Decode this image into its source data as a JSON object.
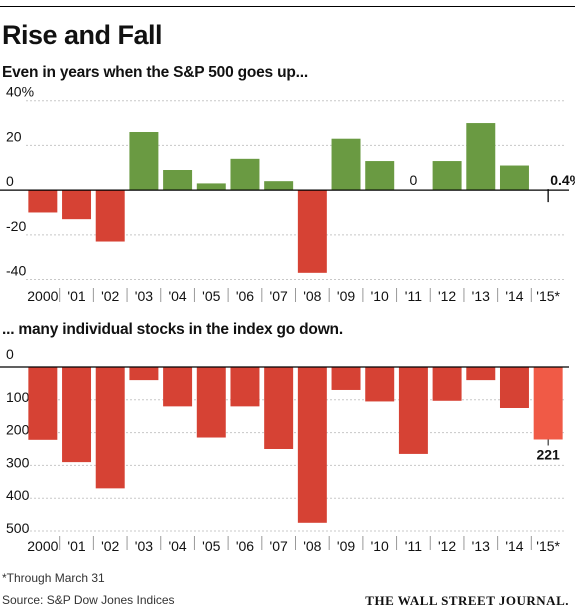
{
  "title": "Rise and Fall",
  "chart_data": [
    {
      "type": "bar",
      "subtitle": "Even in years when the S&P 500 goes up...",
      "categories": [
        "2000",
        "'01",
        "'02",
        "'03",
        "'04",
        "'05",
        "'06",
        "'07",
        "'08",
        "'09",
        "'10",
        "'11",
        "'12",
        "'13",
        "'14",
        "'15*"
      ],
      "values": [
        -10,
        -13,
        -23,
        26,
        9,
        3,
        14,
        4,
        -37,
        23,
        13,
        0,
        13,
        30,
        11,
        0.4
      ],
      "bar_colors": [
        "#d64234",
        "#d64234",
        "#d64234",
        "#6a9a42",
        "#6a9a42",
        "#6a9a42",
        "#6a9a42",
        "#6a9a42",
        "#d64234",
        "#6a9a42",
        "#6a9a42",
        "#6a9a42",
        "#6a9a42",
        "#6a9a42",
        "#6a9a42",
        "#111111"
      ],
      "data_labels": [
        {
          "category": "'11",
          "text": "0"
        },
        {
          "category": "'15*",
          "text": "0.4%"
        }
      ],
      "y_ticks": [
        40,
        20,
        0,
        -20,
        -40
      ],
      "y_tick_labels": [
        "40%",
        "20",
        "0",
        "-20",
        "-40"
      ],
      "ylim": [
        -42,
        43
      ],
      "grid": true
    },
    {
      "type": "bar",
      "subtitle": "... many individual stocks in the index go down.",
      "categories": [
        "2000",
        "'01",
        "'02",
        "'03",
        "'04",
        "'05",
        "'06",
        "'07",
        "'08",
        "'09",
        "'10",
        "'11",
        "'12",
        "'13",
        "'14",
        "'15*"
      ],
      "values": [
        222,
        290,
        370,
        40,
        120,
        215,
        120,
        250,
        475,
        70,
        105,
        265,
        103,
        40,
        125,
        221
      ],
      "bar_colors": [
        "#d64234",
        "#d64234",
        "#d64234",
        "#d64234",
        "#d64234",
        "#d64234",
        "#d64234",
        "#d64234",
        "#d64234",
        "#d64234",
        "#d64234",
        "#d64234",
        "#d64234",
        "#d64234",
        "#d64234",
        "#f05a46"
      ],
      "data_labels": [
        {
          "category": "'15*",
          "text": "221"
        }
      ],
      "y_ticks": [
        0,
        100,
        200,
        300,
        400,
        500
      ],
      "y_tick_labels": [
        "0",
        "100",
        "200",
        "300",
        "400",
        "500"
      ],
      "ylim": [
        0,
        520
      ],
      "inverted": true,
      "grid": true
    }
  ],
  "footnote": "*Through March 31",
  "source": "Source: S&P Dow Jones Indices",
  "publisher": "THE WALL STREET JOURNAL."
}
